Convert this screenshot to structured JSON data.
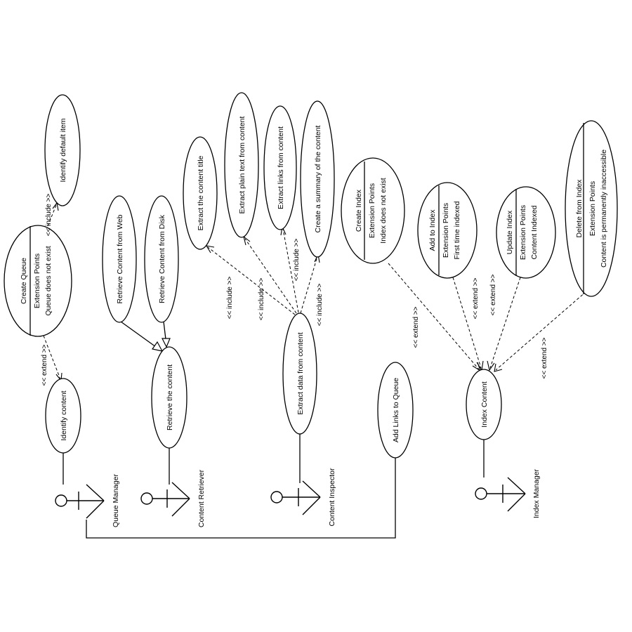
{
  "use_cases": {
    "identify_default_item": "Identify default item",
    "create_queue": {
      "title": "Create Queue",
      "compartment": "Extension Points",
      "point": "Queue does not exist"
    },
    "identify_content": "Identify content",
    "retrieve_content_from_web": "Retrieve Content from Web",
    "retrieve_content_from_disk": "Retrieve Content from Disk",
    "retrieve_the_content": "Retrieve the content",
    "extract_content_title": "Extract the content title",
    "extract_plain_text": "Extract plain text from content",
    "extract_links": "Extract links from content",
    "create_summary": "Create a summary of the content",
    "extract_data": "Extract data from content",
    "create_index": {
      "title": "Create Index",
      "compartment": "Extension Points",
      "point": "Index does not exist"
    },
    "add_to_index": {
      "title": "Add to Index",
      "compartment": "Extension Points",
      "point": "First time indexed"
    },
    "update_index": {
      "title": "Update Index",
      "compartment": "Extension Points",
      "point": "Content Indexed"
    },
    "delete_from_index": {
      "title": "Delete from Index",
      "compartment": "Extension Points",
      "point": "Content is permanently inaccessible"
    },
    "add_links_to_queue": "Add Links to Queue",
    "index_content": "Index Content"
  },
  "actors": {
    "queue_manager": "Queue Manager",
    "content_retriever": "Content Retriever",
    "content_inspector": "Content Inspector",
    "index_manager": "Index Manager"
  },
  "relations": {
    "include_label": "<< include >>",
    "extend_label": "<< extend >>"
  }
}
